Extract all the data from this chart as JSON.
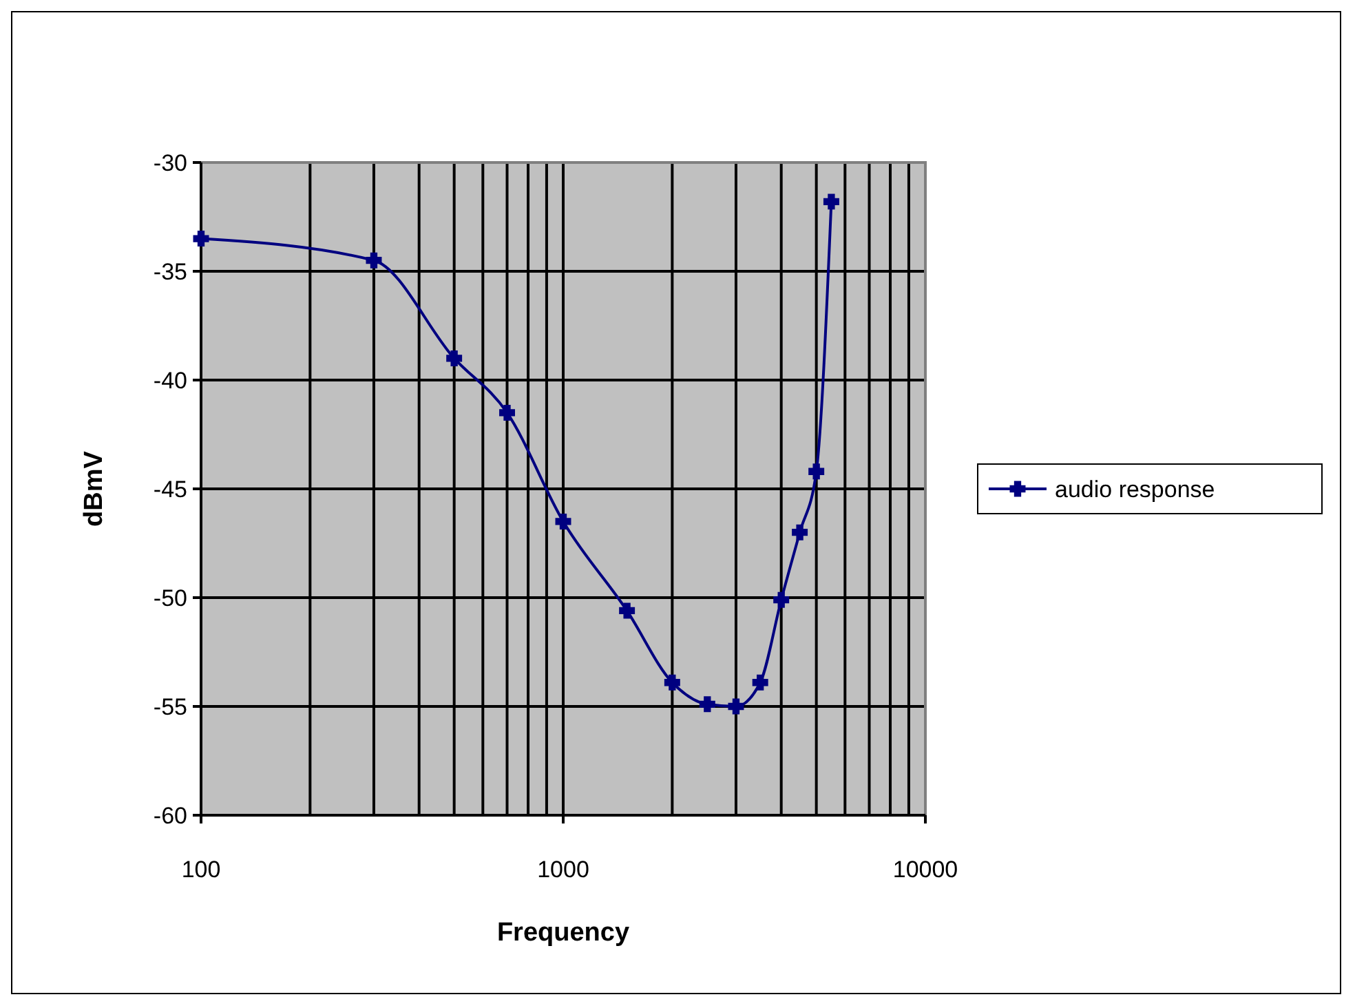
{
  "chart_data": {
    "type": "line",
    "xlabel": "Frequency",
    "ylabel": "dBmV",
    "log": "x",
    "xlim": [
      100,
      10000
    ],
    "xticks": [
      100,
      1000,
      10000
    ],
    "ylim": [
      -60,
      -30
    ],
    "yticks": [
      -60,
      -55,
      -50,
      -45,
      -40,
      -35,
      -30
    ],
    "grid": true,
    "legend": "right",
    "marker": "cross",
    "line_style": "solid",
    "x": [
      100,
      300,
      500,
      700,
      1000,
      1500,
      2000,
      2500,
      3000,
      3500,
      4000,
      4500,
      5000,
      5500
    ],
    "series": [
      {
        "name": "audio response",
        "color": "#000080",
        "values": [
          -33.5,
          -34.5,
          -39.0,
          -41.5,
          -46.5,
          -50.6,
          -53.9,
          -54.9,
          -55.0,
          -53.9,
          -50.1,
          -47.0,
          -44.2,
          -31.8
        ]
      }
    ]
  }
}
